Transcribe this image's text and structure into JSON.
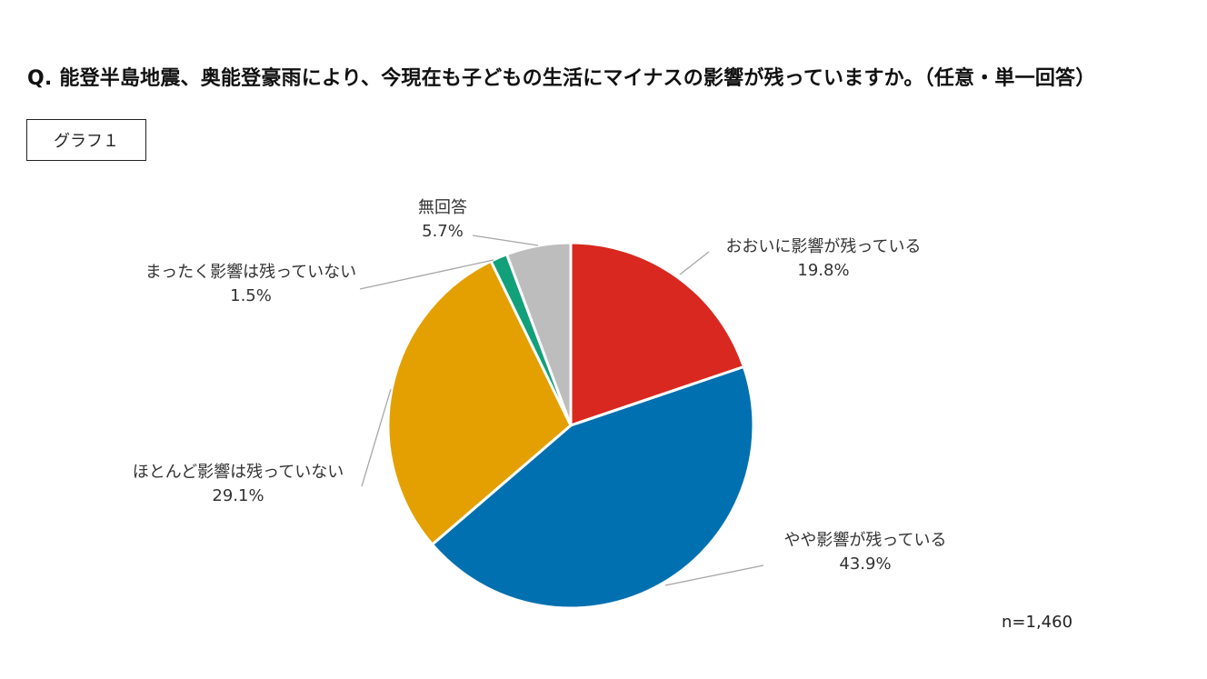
{
  "title": "Q. 能登半島地震、奥能登豪雨により、今現在も子どもの生活にマイナスの影響が残っていますか。（任意・単一回答）",
  "graph_label": "グラフ１",
  "sample_size": "n=1,460",
  "chart_data": {
    "type": "pie",
    "start_angle_deg": 0,
    "direction": "clockwise",
    "slices": [
      {
        "label": "おおいに影響が残っている",
        "value": 19.8,
        "value_label": "19.8%",
        "color": "#d8281f"
      },
      {
        "label": "やや影響が残っている",
        "value": 43.9,
        "value_label": "43.9%",
        "color": "#0070b0"
      },
      {
        "label": "ほとんど影響は残っていない",
        "value": 29.1,
        "value_label": "29.1%",
        "color": "#e3a000"
      },
      {
        "label": "まったく影響は残っていない",
        "value": 1.5,
        "value_label": "1.5%",
        "color": "#12a07a"
      },
      {
        "label": "無回答",
        "value": 5.7,
        "value_label": "5.7%",
        "color": "#bdbdbd"
      }
    ]
  }
}
